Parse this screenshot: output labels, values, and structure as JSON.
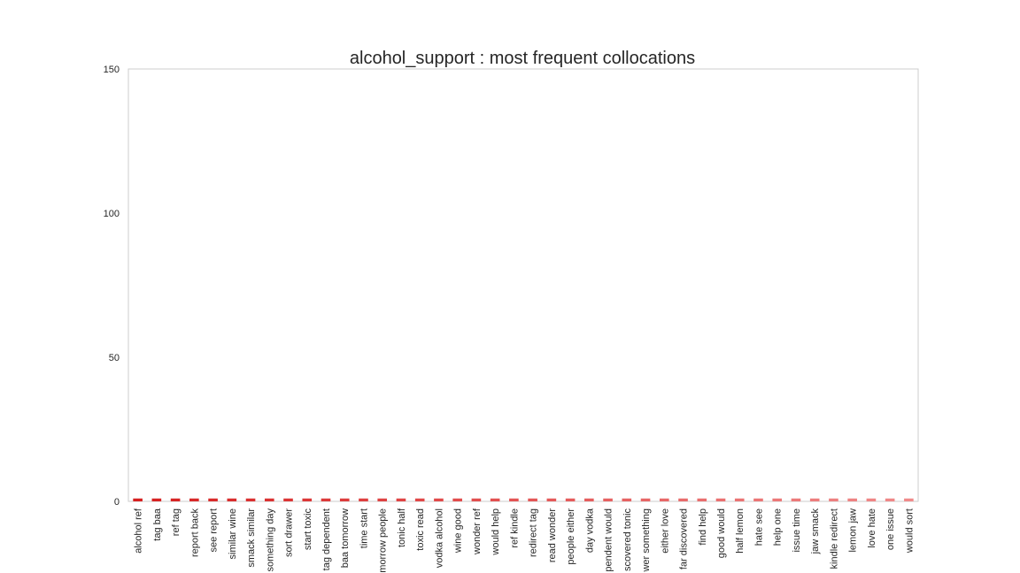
{
  "chart_data": {
    "type": "bar",
    "title": "alcohol_support : most frequent collocations",
    "xlabel": "",
    "ylabel": "",
    "ylim": [
      0,
      150
    ],
    "yticks": [
      0,
      50,
      100,
      150
    ],
    "grid": false,
    "categories": [
      "alcohol ref",
      "tag baa",
      "ref tag",
      "report back",
      "see report",
      "similar wine",
      "smack similar",
      "something day",
      "sort drawer",
      "start toxic",
      "tag dependent",
      "baa tomorrow",
      "time start",
      "morrow people",
      "tonic half",
      "toxic read",
      "vodka alcohol",
      "wine good",
      "wonder ref",
      "would help",
      "ref kindle",
      "redirect tag",
      "read wonder",
      "people either",
      "day vodka",
      "pendent would",
      "scovered tonic",
      "wer something",
      "either love",
      "far discovered",
      "find help",
      "good would",
      "half lemon",
      "hate see",
      "help one",
      "issue time",
      "jaw smack",
      "kindle redirect",
      "lemon jaw",
      "love hate",
      "one issue",
      "would sort"
    ],
    "values": [
      1,
      1,
      1,
      1,
      1,
      1,
      1,
      1,
      1,
      1,
      1,
      1,
      1,
      1,
      1,
      1,
      1,
      1,
      1,
      1,
      1,
      1,
      1,
      1,
      1,
      1,
      1,
      1,
      1,
      1,
      1,
      1,
      1,
      1,
      1,
      1,
      1,
      1,
      1,
      1,
      1,
      1
    ],
    "color_start": "#d62020",
    "color_end": "#f08a8a",
    "frame_color": "#cccccc"
  }
}
